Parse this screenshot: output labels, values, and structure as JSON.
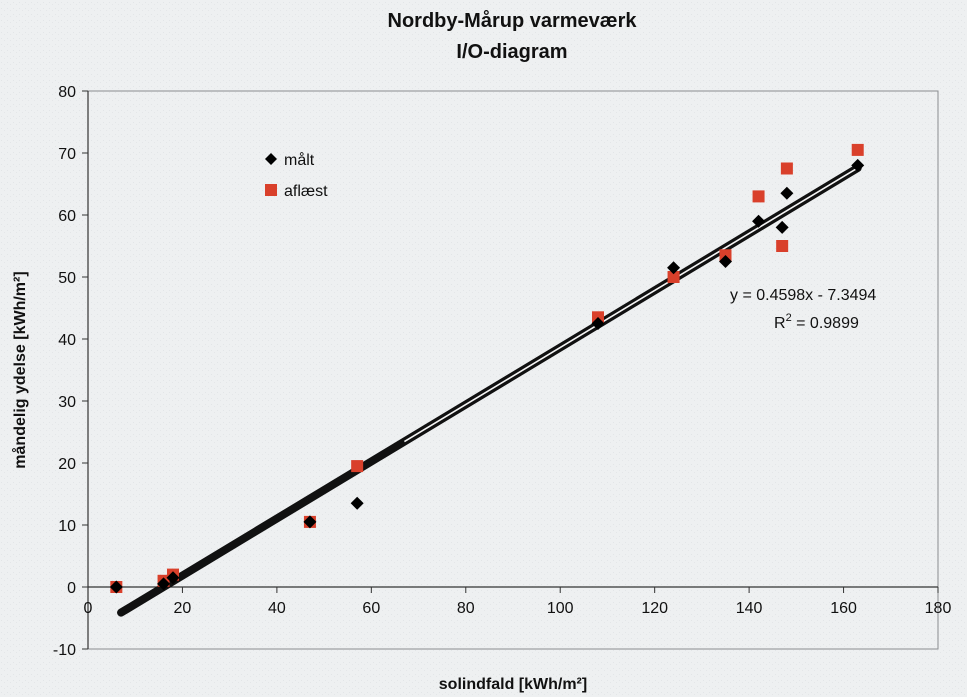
{
  "chart_data": {
    "type": "scatter",
    "title": "Nordby-Mårup varmeværk",
    "subtitle": "I/O-diagram",
    "xlabel": "solindfald [kWh/m²]",
    "ylabel": "måndelig ydelse [kWh/m²]",
    "xlim": [
      0,
      180
    ],
    "ylim": [
      -10,
      80
    ],
    "xticks": [
      0,
      20,
      40,
      60,
      80,
      100,
      120,
      140,
      160,
      180
    ],
    "yticks": [
      -10,
      0,
      10,
      20,
      30,
      40,
      50,
      60,
      70,
      80
    ],
    "legend_position": "top-left",
    "series": [
      {
        "name": "målt",
        "marker": "diamond",
        "color": "#000000",
        "points": [
          [
            6,
            0
          ],
          [
            16,
            0.5
          ],
          [
            18,
            1.5
          ],
          [
            47,
            10.5
          ],
          [
            57,
            13.5
          ],
          [
            108,
            42.5
          ],
          [
            124,
            51.5
          ],
          [
            135,
            52.5
          ],
          [
            142,
            59
          ],
          [
            147,
            58
          ],
          [
            148,
            63.5
          ],
          [
            163,
            68
          ]
        ]
      },
      {
        "name": "aflæst",
        "marker": "square",
        "color": "#d9402b",
        "points": [
          [
            6,
            0
          ],
          [
            16,
            1
          ],
          [
            18,
            2
          ],
          [
            47,
            10.5
          ],
          [
            57,
            19.5
          ],
          [
            108,
            43.5
          ],
          [
            124,
            50
          ],
          [
            135,
            53.5
          ],
          [
            142,
            63
          ],
          [
            147,
            55
          ],
          [
            148,
            67.5
          ],
          [
            163,
            70.5
          ]
        ]
      }
    ],
    "trendline": {
      "slope": 0.4598,
      "intercept": -7.3494,
      "x_range": [
        7,
        163
      ],
      "equation": "y = 0.4598x - 7.3494",
      "r_squared_label": "R",
      "r_squared_exp": "2",
      "r_squared_value": " = 0.9899"
    }
  }
}
